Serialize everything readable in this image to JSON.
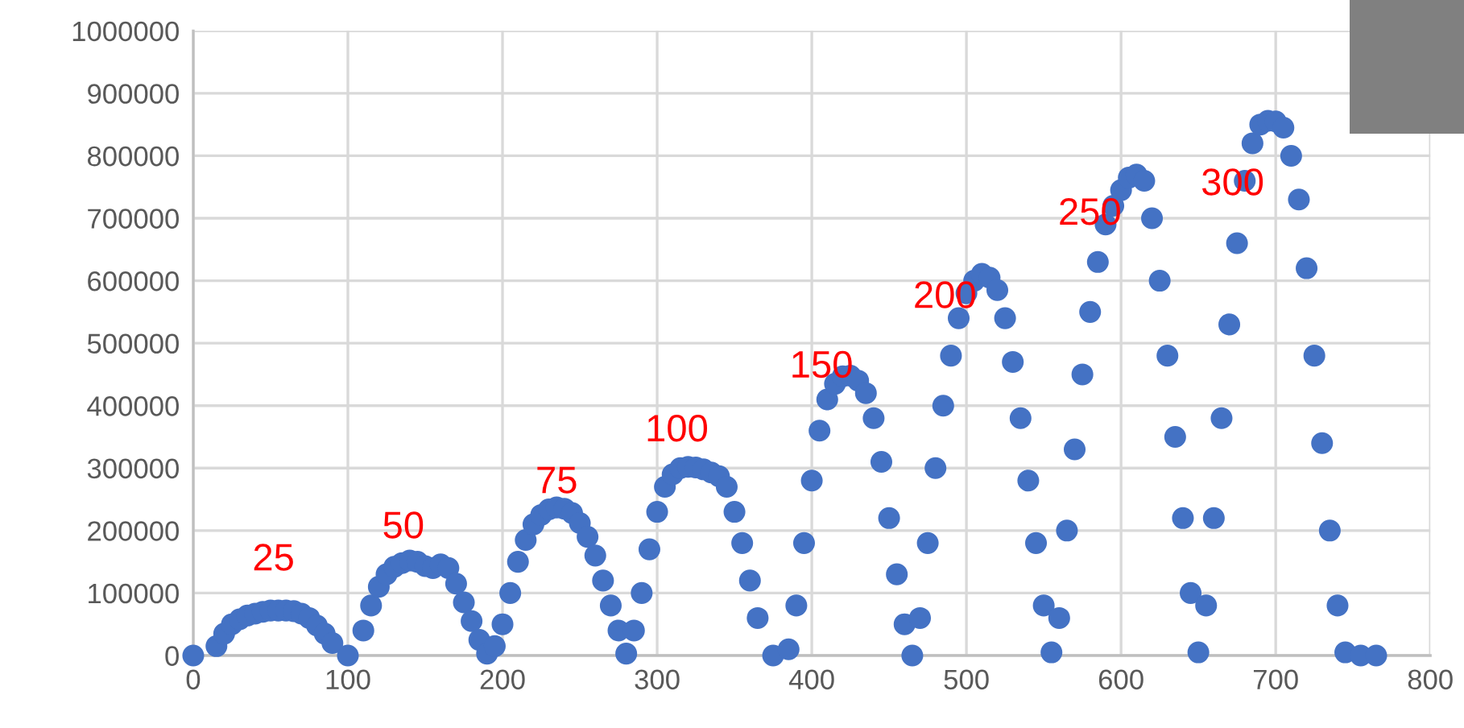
{
  "chart_data": {
    "type": "scatter",
    "marker": "circle",
    "grid": true,
    "legend": false,
    "xlim": [
      0,
      800
    ],
    "xticks": [
      0,
      100,
      200,
      300,
      400,
      500,
      600,
      700,
      800
    ],
    "ylim": [
      0,
      1000000
    ],
    "yticks": [
      0,
      100000,
      200000,
      300000,
      400000,
      500000,
      600000,
      700000,
      800000,
      900000,
      1000000
    ],
    "series": [
      {
        "color": "#4472c4",
        "x": [
          0,
          15,
          20,
          25,
          30,
          35,
          40,
          45,
          50,
          55,
          60,
          65,
          70,
          75,
          80,
          85,
          90,
          100,
          110,
          115,
          120,
          125,
          130,
          135,
          140,
          145,
          150,
          155,
          160,
          165,
          170,
          175,
          180,
          185,
          190,
          195,
          200,
          205,
          210,
          215,
          220,
          225,
          230,
          235,
          240,
          245,
          250,
          255,
          260,
          265,
          270,
          275,
          280,
          285,
          290,
          295,
          300,
          305,
          310,
          315,
          320,
          325,
          330,
          335,
          340,
          345,
          350,
          355,
          360,
          365,
          375,
          385,
          390,
          395,
          400,
          405,
          410,
          415,
          420,
          425,
          430,
          435,
          440,
          445,
          450,
          455,
          460,
          465,
          470,
          475,
          480,
          485,
          490,
          495,
          500,
          505,
          510,
          515,
          520,
          525,
          530,
          535,
          540,
          545,
          550,
          555,
          560,
          565,
          570,
          575,
          580,
          585,
          590,
          595,
          600,
          605,
          610,
          615,
          620,
          625,
          630,
          635,
          640,
          645,
          650,
          655,
          660,
          665,
          670,
          675,
          680,
          685,
          690,
          695,
          700,
          705,
          710,
          715,
          720,
          725,
          730,
          735,
          740,
          745,
          755,
          765
        ],
        "values": [
          0,
          15000,
          35000,
          50000,
          58000,
          64000,
          67000,
          70000,
          72000,
          72000,
          72000,
          71000,
          67000,
          60000,
          48000,
          35000,
          20000,
          0,
          40000,
          80000,
          110000,
          130000,
          142000,
          148000,
          152000,
          150000,
          143000,
          140000,
          146000,
          140000,
          115000,
          85000,
          55000,
          25000,
          3000,
          15000,
          50000,
          100000,
          150000,
          185000,
          210000,
          225000,
          234000,
          237000,
          235000,
          228000,
          212000,
          190000,
          160000,
          120000,
          80000,
          40000,
          3000,
          40000,
          100000,
          170000,
          230000,
          270000,
          290000,
          300000,
          302000,
          301000,
          298000,
          293000,
          287000,
          270000,
          230000,
          180000,
          120000,
          60000,
          0,
          10000,
          80000,
          180000,
          280000,
          360000,
          410000,
          435000,
          447000,
          448000,
          440000,
          420000,
          380000,
          310000,
          220000,
          130000,
          50000,
          0,
          60000,
          180000,
          300000,
          400000,
          480000,
          540000,
          580000,
          600000,
          611000,
          605000,
          585000,
          540000,
          470000,
          380000,
          280000,
          180000,
          80000,
          5000,
          60000,
          200000,
          330000,
          450000,
          550000,
          630000,
          690000,
          720000,
          745000,
          765000,
          770000,
          760000,
          700000,
          600000,
          480000,
          350000,
          220000,
          100000,
          5000,
          80000,
          220000,
          380000,
          530000,
          660000,
          760000,
          820000,
          850000,
          856000,
          855000,
          845000,
          800000,
          730000,
          620000,
          480000,
          340000,
          200000,
          80000,
          5000,
          0,
          0
        ]
      }
    ],
    "annotations": [
      {
        "text": "25",
        "x": 55,
        "y": 72000
      },
      {
        "text": "50",
        "x": 140,
        "y": 152000
      },
      {
        "text": "75",
        "x": 235,
        "y": 237000
      },
      {
        "text": "100",
        "x": 320,
        "y": 302000
      },
      {
        "text": "150",
        "x": 425,
        "y": 448000
      },
      {
        "text": "200",
        "x": 510,
        "y": 611000
      },
      {
        "text": "250",
        "x": 610,
        "y": 770000
      },
      {
        "text": "300",
        "x": 695,
        "y": 856000
      }
    ]
  }
}
